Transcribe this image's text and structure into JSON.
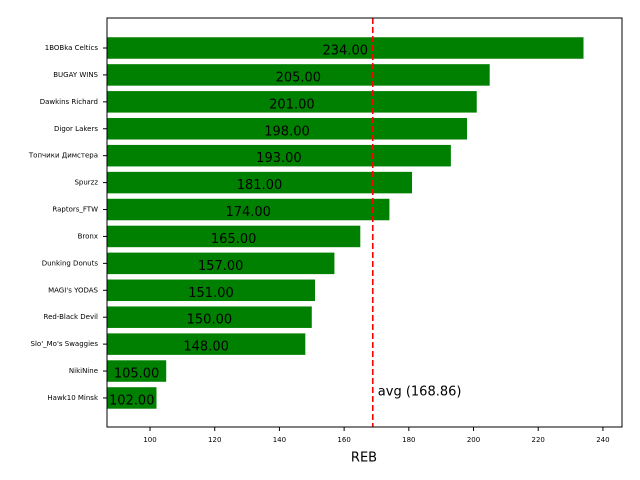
{
  "chart_data": {
    "type": "barh",
    "xlabel": "REB",
    "categories": [
      "1BOBka Celtics",
      "BUGAY WINS",
      "Dawkins Richard",
      "Digor Lakers",
      "Топчики Димстера",
      "Spurzz",
      "Raptors_FTW",
      "Bronx",
      "Dunking Donuts",
      "MAGI's YODAS",
      "Red-Black Devil",
      "Slo'_Mo's Swaggies",
      "NikiNine",
      "Hawk10 Minsk"
    ],
    "values": [
      234,
      205,
      201,
      198,
      193,
      181,
      174,
      165,
      157,
      151,
      150,
      148,
      105,
      102
    ],
    "value_labels": [
      "234.00",
      "205.00",
      "201.00",
      "198.00",
      "193.00",
      "181.00",
      "174.00",
      "165.00",
      "157.00",
      "151.00",
      "150.00",
      "148.00",
      "105.00",
      "102.00"
    ],
    "color": "#008000",
    "xlim": [
      86.7,
      245.9
    ],
    "xticks": [
      100,
      120,
      140,
      160,
      180,
      200,
      220,
      240
    ],
    "avg_line": {
      "value": 168.86,
      "label": "avg (168.86)",
      "color": "#ff0000"
    }
  }
}
